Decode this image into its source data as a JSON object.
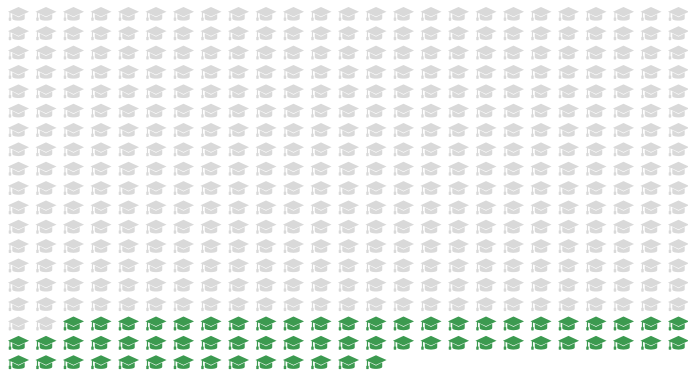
{
  "chart_data": {
    "type": "waffle",
    "values": [
      402,
      62
    ],
    "colors": [
      "#d9d9d9",
      "#3c9a50"
    ],
    "columns": 25
  }
}
